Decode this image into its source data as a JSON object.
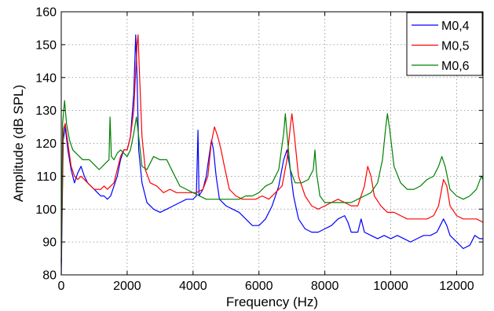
{
  "chart_data": {
    "type": "line",
    "xlabel": "Frequency (Hz)",
    "ylabel": "Amplitude (dB SPL)",
    "xlim": [
      0,
      12800
    ],
    "ylim": [
      80,
      160
    ],
    "xticks": [
      0,
      2000,
      4000,
      6000,
      8000,
      10000,
      12000
    ],
    "yticks": [
      80,
      90,
      100,
      110,
      120,
      130,
      140,
      150,
      160
    ],
    "grid": true,
    "legend_position": "top-right",
    "series": [
      {
        "name": "M0,4",
        "color": "#0000ff",
        "points": [
          [
            0,
            80
          ],
          [
            60,
            121
          ],
          [
            120,
            125
          ],
          [
            200,
            118
          ],
          [
            300,
            112
          ],
          [
            400,
            108
          ],
          [
            500,
            111
          ],
          [
            600,
            113
          ],
          [
            700,
            110
          ],
          [
            800,
            108
          ],
          [
            900,
            107
          ],
          [
            1000,
            106
          ],
          [
            1100,
            105
          ],
          [
            1200,
            104
          ],
          [
            1300,
            104
          ],
          [
            1400,
            103
          ],
          [
            1500,
            104
          ],
          [
            1600,
            107
          ],
          [
            1700,
            110
          ],
          [
            1800,
            115
          ],
          [
            1900,
            118
          ],
          [
            2000,
            118
          ],
          [
            2100,
            122
          ],
          [
            2200,
            135
          ],
          [
            2260,
            153
          ],
          [
            2300,
            140
          ],
          [
            2350,
            118
          ],
          [
            2450,
            108
          ],
          [
            2600,
            102
          ],
          [
            2800,
            100
          ],
          [
            3000,
            99
          ],
          [
            3200,
            100
          ],
          [
            3400,
            101
          ],
          [
            3600,
            102
          ],
          [
            3800,
            103
          ],
          [
            4000,
            103
          ],
          [
            4100,
            104
          ],
          [
            4150,
            124
          ],
          [
            4180,
            104
          ],
          [
            4300,
            106
          ],
          [
            4400,
            110
          ],
          [
            4500,
            117
          ],
          [
            4560,
            121
          ],
          [
            4620,
            118
          ],
          [
            4700,
            110
          ],
          [
            4800,
            103
          ],
          [
            5000,
            101
          ],
          [
            5200,
            100
          ],
          [
            5400,
            99
          ],
          [
            5600,
            97
          ],
          [
            5800,
            95
          ],
          [
            6000,
            95
          ],
          [
            6200,
            97
          ],
          [
            6400,
            101
          ],
          [
            6600,
            107
          ],
          [
            6750,
            115
          ],
          [
            6850,
            118
          ],
          [
            6950,
            112
          ],
          [
            7050,
            104
          ],
          [
            7200,
            97
          ],
          [
            7400,
            94
          ],
          [
            7600,
            93
          ],
          [
            7800,
            93
          ],
          [
            8000,
            94
          ],
          [
            8200,
            95
          ],
          [
            8400,
            97
          ],
          [
            8600,
            98
          ],
          [
            8700,
            96
          ],
          [
            8800,
            93
          ],
          [
            9000,
            93
          ],
          [
            9100,
            97
          ],
          [
            9200,
            93
          ],
          [
            9400,
            92
          ],
          [
            9600,
            91
          ],
          [
            9800,
            92
          ],
          [
            10000,
            91
          ],
          [
            10200,
            92
          ],
          [
            10400,
            91
          ],
          [
            10600,
            90
          ],
          [
            10800,
            91
          ],
          [
            11000,
            92
          ],
          [
            11200,
            92
          ],
          [
            11400,
            93
          ],
          [
            11500,
            95
          ],
          [
            11600,
            97
          ],
          [
            11700,
            95
          ],
          [
            11800,
            92
          ],
          [
            12000,
            90
          ],
          [
            12200,
            88
          ],
          [
            12400,
            89
          ],
          [
            12550,
            92
          ],
          [
            12700,
            91
          ],
          [
            12800,
            91
          ]
        ]
      },
      {
        "name": "M0,5",
        "color": "#ff0000",
        "points": [
          [
            0,
            84
          ],
          [
            60,
            124
          ],
          [
            120,
            126
          ],
          [
            200,
            120
          ],
          [
            300,
            113
          ],
          [
            400,
            110
          ],
          [
            500,
            109
          ],
          [
            600,
            110
          ],
          [
            700,
            109
          ],
          [
            800,
            108
          ],
          [
            900,
            107
          ],
          [
            1000,
            106
          ],
          [
            1100,
            106
          ],
          [
            1200,
            106
          ],
          [
            1300,
            107
          ],
          [
            1400,
            106
          ],
          [
            1500,
            107
          ],
          [
            1600,
            108
          ],
          [
            1700,
            112
          ],
          [
            1800,
            116
          ],
          [
            1900,
            118
          ],
          [
            2000,
            118
          ],
          [
            2100,
            122
          ],
          [
            2200,
            130
          ],
          [
            2300,
            150
          ],
          [
            2330,
            153
          ],
          [
            2380,
            140
          ],
          [
            2450,
            122
          ],
          [
            2550,
            112
          ],
          [
            2700,
            108
          ],
          [
            2900,
            107
          ],
          [
            3100,
            105
          ],
          [
            3300,
            106
          ],
          [
            3500,
            105
          ],
          [
            3700,
            105
          ],
          [
            3900,
            105
          ],
          [
            4100,
            105
          ],
          [
            4300,
            106
          ],
          [
            4450,
            110
          ],
          [
            4550,
            120
          ],
          [
            4650,
            125
          ],
          [
            4750,
            122
          ],
          [
            4850,
            118
          ],
          [
            4950,
            113
          ],
          [
            5100,
            106
          ],
          [
            5300,
            104
          ],
          [
            5500,
            103
          ],
          [
            5700,
            103
          ],
          [
            5900,
            103
          ],
          [
            6100,
            104
          ],
          [
            6300,
            103
          ],
          [
            6500,
            105
          ],
          [
            6700,
            107
          ],
          [
            6850,
            115
          ],
          [
            6950,
            125
          ],
          [
            7000,
            129
          ],
          [
            7080,
            122
          ],
          [
            7200,
            110
          ],
          [
            7400,
            104
          ],
          [
            7600,
            101
          ],
          [
            7800,
            100
          ],
          [
            8000,
            101
          ],
          [
            8200,
            102
          ],
          [
            8400,
            103
          ],
          [
            8600,
            102
          ],
          [
            8800,
            101
          ],
          [
            9000,
            101
          ],
          [
            9200,
            107
          ],
          [
            9300,
            113
          ],
          [
            9400,
            110
          ],
          [
            9500,
            104
          ],
          [
            9700,
            101
          ],
          [
            9900,
            99
          ],
          [
            10100,
            99
          ],
          [
            10300,
            98
          ],
          [
            10500,
            97
          ],
          [
            10700,
            97
          ],
          [
            10900,
            97
          ],
          [
            11100,
            97
          ],
          [
            11300,
            98
          ],
          [
            11450,
            101
          ],
          [
            11600,
            109
          ],
          [
            11700,
            107
          ],
          [
            11800,
            101
          ],
          [
            12000,
            98
          ],
          [
            12200,
            97
          ],
          [
            12400,
            97
          ],
          [
            12600,
            97
          ],
          [
            12800,
            96
          ]
        ]
      },
      {
        "name": "M0,6",
        "color": "#008000",
        "points": [
          [
            0,
            83
          ],
          [
            40,
            126
          ],
          [
            100,
            133
          ],
          [
            160,
            126
          ],
          [
            250,
            121
          ],
          [
            350,
            118
          ],
          [
            450,
            117
          ],
          [
            550,
            116
          ],
          [
            650,
            115
          ],
          [
            750,
            115
          ],
          [
            850,
            115
          ],
          [
            950,
            114
          ],
          [
            1050,
            113
          ],
          [
            1150,
            112
          ],
          [
            1250,
            113
          ],
          [
            1350,
            114
          ],
          [
            1450,
            115
          ],
          [
            1480,
            128
          ],
          [
            1520,
            116
          ],
          [
            1600,
            115
          ],
          [
            1700,
            117
          ],
          [
            1800,
            118
          ],
          [
            1900,
            117
          ],
          [
            2000,
            116
          ],
          [
            2100,
            118
          ],
          [
            2200,
            123
          ],
          [
            2280,
            128
          ],
          [
            2350,
            122
          ],
          [
            2450,
            113
          ],
          [
            2600,
            112
          ],
          [
            2800,
            116
          ],
          [
            3000,
            115
          ],
          [
            3200,
            115
          ],
          [
            3400,
            111
          ],
          [
            3600,
            107
          ],
          [
            3800,
            106
          ],
          [
            4000,
            105
          ],
          [
            4200,
            104
          ],
          [
            4400,
            103
          ],
          [
            4600,
            103
          ],
          [
            4800,
            103
          ],
          [
            5000,
            103
          ],
          [
            5200,
            103
          ],
          [
            5400,
            103
          ],
          [
            5600,
            104
          ],
          [
            5800,
            104
          ],
          [
            6000,
            105
          ],
          [
            6200,
            107
          ],
          [
            6400,
            108
          ],
          [
            6600,
            112
          ],
          [
            6750,
            123
          ],
          [
            6800,
            129
          ],
          [
            6850,
            123
          ],
          [
            6950,
            112
          ],
          [
            7100,
            108
          ],
          [
            7300,
            108
          ],
          [
            7500,
            109
          ],
          [
            7650,
            112
          ],
          [
            7700,
            118
          ],
          [
            7750,
            111
          ],
          [
            7850,
            104
          ],
          [
            8000,
            102
          ],
          [
            8200,
            102
          ],
          [
            8400,
            102
          ],
          [
            8600,
            102
          ],
          [
            8800,
            102
          ],
          [
            9000,
            103
          ],
          [
            9200,
            104
          ],
          [
            9400,
            105
          ],
          [
            9600,
            108
          ],
          [
            9750,
            115
          ],
          [
            9850,
            125
          ],
          [
            9900,
            129
          ],
          [
            9970,
            124
          ],
          [
            10100,
            113
          ],
          [
            10300,
            108
          ],
          [
            10500,
            106
          ],
          [
            10700,
            106
          ],
          [
            10900,
            107
          ],
          [
            11100,
            109
          ],
          [
            11300,
            110
          ],
          [
            11450,
            113
          ],
          [
            11550,
            116
          ],
          [
            11650,
            113
          ],
          [
            11800,
            106
          ],
          [
            12000,
            104
          ],
          [
            12200,
            103
          ],
          [
            12400,
            104
          ],
          [
            12600,
            106
          ],
          [
            12750,
            110
          ],
          [
            12800,
            109
          ]
        ]
      }
    ]
  }
}
